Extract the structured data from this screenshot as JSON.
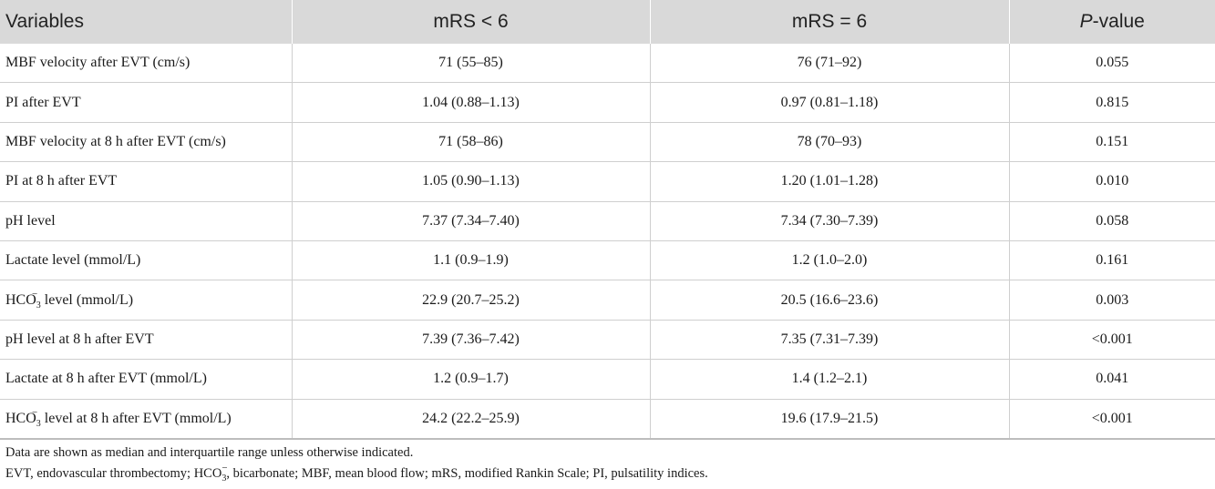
{
  "table": {
    "headers": [
      "Variables",
      "mRS < 6",
      "mRS = 6",
      "P-value"
    ],
    "header_pvalue_italic": "P",
    "header_pvalue_rest": "-value",
    "rows": [
      {
        "variable": "MBF velocity after EVT (cm/s)",
        "lt6": "71 (55–85)",
        "eq6": "76 (71–92)",
        "p": "0.055"
      },
      {
        "variable": "PI after EVT",
        "lt6": "1.04 (0.88–1.13)",
        "eq6": "0.97 (0.81–1.18)",
        "p": "0.815"
      },
      {
        "variable": "MBF velocity at 8 h after EVT (cm/s)",
        "lt6": "71 (58–86)",
        "eq6": "78 (70–93)",
        "p": "0.151"
      },
      {
        "variable": "PI at 8 h after EVT",
        "lt6": "1.05 (0.90–1.13)",
        "eq6": "1.20 (1.01–1.28)",
        "p": "0.010"
      },
      {
        "variable": "pH level",
        "lt6": "7.37 (7.34–7.40)",
        "eq6": "7.34 (7.30–7.39)",
        "p": "0.058"
      },
      {
        "variable": "Lactate level (mmol/L)",
        "lt6": "1.1 (0.9–1.9)",
        "eq6": "1.2 (1.0–2.0)",
        "p": "0.161"
      },
      {
        "variable_prefix": "HCO",
        "variable_sub": "3",
        "variable_sup": "−",
        "variable_suffix": " level (mmol/L)",
        "lt6": "22.9 (20.7–25.2)",
        "eq6": "20.5 (16.6–23.6)",
        "p": "0.003"
      },
      {
        "variable": "pH level at 8 h after EVT",
        "lt6": "7.39 (7.36–7.42)",
        "eq6": "7.35 (7.31–7.39)",
        "p": "<0.001"
      },
      {
        "variable": "Lactate at 8 h after EVT (mmol/L)",
        "lt6": "1.2 (0.9–1.7)",
        "eq6": "1.4 (1.2–2.1)",
        "p": "0.041"
      },
      {
        "variable_prefix": "HCO",
        "variable_sub": "3",
        "variable_sup": "−",
        "variable_suffix": " level at 8 h after EVT (mmol/L)",
        "lt6": "24.2 (22.2–25.9)",
        "eq6": "19.6 (17.9–21.5)",
        "p": "<0.001"
      }
    ]
  },
  "footnotes": {
    "line1": "Data are shown as median and interquartile range unless otherwise indicated.",
    "line2_prefix": "EVT, endovascular thrombectomy; HCO",
    "line2_sub": "3",
    "line2_sup": "−",
    "line2_suffix": ", bicarbonate; MBF, mean blood flow; mRS, modified Rankin Scale; PI, pulsatility indices."
  },
  "colors": {
    "header_bg": "#d9d9d9",
    "grid": "#cfcfcf",
    "text": "#1a1a1a"
  }
}
